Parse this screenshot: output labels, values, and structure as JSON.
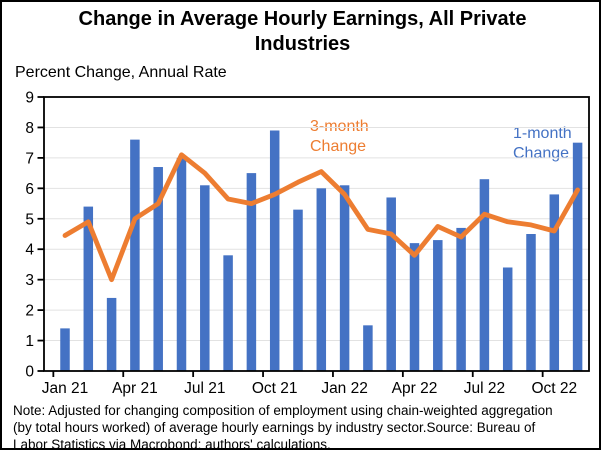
{
  "title": "Change in Average Hourly Earnings, All Private\nIndustries",
  "y_axis_title": "Percent Change, Annual Rate",
  "legend": {
    "three_month_label": "3-month\nChange",
    "one_month_label": "1-month\nChange"
  },
  "note": "Note: Adjusted for changing composition of employment using chain-weighted aggregation\n(by total hours worked) of average hourly earnings by industry sector.Source: Bureau of\nLabor Statistics via Macrobond;  authors' calculations.",
  "colors": {
    "bar": "#4472C4",
    "line": "#ED7D31",
    "grid": "#E2E2E2",
    "axis": "#000000"
  },
  "chart_data": {
    "type": "bar",
    "title": "Change in Average Hourly Earnings, All Private Industries",
    "ylabel": "Percent Change, Annual Rate",
    "ylim": [
      0,
      9
    ],
    "y_ticks": [
      0,
      1,
      2,
      3,
      4,
      5,
      6,
      7,
      8,
      9
    ],
    "grid": "horizontal",
    "legend_position": "inline-annotations",
    "categories": [
      "Jan 21",
      "Feb 21",
      "Mar 21",
      "Apr 21",
      "May 21",
      "Jun 21",
      "Jul 21",
      "Aug 21",
      "Sep 21",
      "Oct 21",
      "Nov 21",
      "Dec 21",
      "Jan 22",
      "Feb 22",
      "Mar 22",
      "Apr 22",
      "May 22",
      "Jun 22",
      "Jul 22",
      "Aug 22",
      "Sep 22",
      "Oct 22",
      "Nov 22"
    ],
    "x_tick_labels": [
      "Jan 21",
      "Apr 21",
      "Jul 21",
      "Oct 21",
      "Jan 22",
      "Apr 22",
      "Jul 22",
      "Oct 22"
    ],
    "x_tick_indices": [
      0,
      3,
      6,
      9,
      12,
      15,
      18,
      21
    ],
    "series": [
      {
        "name": "1-month Change",
        "type": "bar",
        "color": "#4472C4",
        "values": [
          1.4,
          5.4,
          2.4,
          7.6,
          6.7,
          7.0,
          6.1,
          3.8,
          6.5,
          7.9,
          5.3,
          6.0,
          6.1,
          1.5,
          5.7,
          4.2,
          4.3,
          4.7,
          6.3,
          3.4,
          4.5,
          5.8,
          7.5
        ]
      },
      {
        "name": "3-month Change",
        "type": "line",
        "color": "#ED7D31",
        "values": [
          4.45,
          4.9,
          3.0,
          5.0,
          5.5,
          7.1,
          6.5,
          5.65,
          5.5,
          5.8,
          6.2,
          6.55,
          5.8,
          4.65,
          4.5,
          3.8,
          4.75,
          4.4,
          5.15,
          4.9,
          4.8,
          4.6,
          5.95
        ]
      }
    ]
  }
}
